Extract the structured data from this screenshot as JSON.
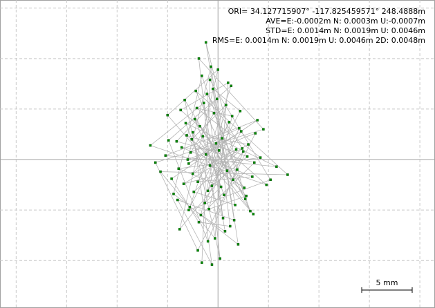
{
  "chart_data": {
    "type": "scatter",
    "annotations": [
      "ORI= 34.127715907° -117.825459571° 248.4888m",
      "AVE=E:-0.0002m N: 0.0003m U:-0.0007m",
      "STD=E: 0.0014m N: 0.0019m U: 0.0046m",
      "RMS=E: 0.0014m N: 0.0019m U: 0.0046m 2D: 0.0048m"
    ],
    "scale_bar": {
      "value": 5,
      "label": "5 mm"
    },
    "xlim": [
      -21.6,
      21.5
    ],
    "ylim": [
      -14.7,
      15.8
    ],
    "xticks": [
      -20,
      -15,
      -10,
      -5,
      0,
      5,
      10,
      15,
      20
    ],
    "yticks": [
      -10,
      -5,
      0,
      5,
      10,
      15
    ],
    "grid": true,
    "line_color": "#b4b4b4",
    "color": "#009000",
    "series": [
      {
        "x": [
          -1.2,
          0.4,
          -2.5,
          1.8,
          -0.6,
          2.9,
          -3.1,
          0.9,
          -1.8,
          1.5,
          -0.2,
          -2.9,
          2.3,
          -1.0,
          0.1,
          -3.6,
          3.4,
          -2.0,
          1.1,
          -0.8,
          2.6,
          -2.3,
          0.6,
          -1.5,
          3.0,
          -3.4,
          1.9,
          -0.4,
          -2.7,
          2.1,
          -1.3,
          0.3,
          -3.9,
          4.2,
          -2.1,
          1.4,
          -0.9,
          2.8,
          -2.6,
          0.8,
          -1.7,
          3.6,
          -4.1,
          -0.1,
          1.7,
          -2.4,
          2.4,
          -1.1,
          0.5,
          -3.2,
          5.8,
          -5.2,
          3.9,
          -4.6,
          -1.9,
          1.2,
          -0.5,
          2.2,
          -2.8,
          0.7,
          -1.4,
          -6.7,
          4.8,
          -3.7,
          1.0,
          -0.3,
          -5.7,
          6.9,
          -2.2,
          3.2,
          -1.6,
          -4.4,
          2.0,
          -0.7,
          -3.0,
          3.7,
          -2.0,
          -6.2,
          4.5,
          -1.9,
          0.2,
          -3.3,
          2.7,
          -1.2,
          1.6,
          -4.0,
          -0.6,
          -2.5,
          3.5,
          -5.0,
          0.0,
          -3.8,
          2.5,
          -1.0,
          -4.9,
          1.3,
          -2.9,
          5.2,
          -0.8,
          -1.6
        ],
        "values": [
          0.5,
          2.1,
          -1.4,
          1.0,
          -2.6,
          0.3,
          2.4,
          -1.1,
          3.3,
          -2.0,
          1.6,
          -0.4,
          2.8,
          -3.1,
          0.9,
          1.2,
          -1.7,
          -2.2,
          3.7,
          -0.6,
          -2.8,
          4.0,
          -3.5,
          2.3,
          1.5,
          -2.4,
          -1.0,
          4.6,
          0.7,
          3.1,
          -4.3,
          -2.7,
          -0.9,
          0.2,
          5.1,
          4.3,
          -4.9,
          -3.6,
          2.0,
          5.4,
          -5.5,
          -0.3,
          1.8,
          6.0,
          -4.5,
          -3.2,
          1.1,
          6.5,
          -5.8,
          3.6,
          -0.7,
          0.4,
          3.9,
          -1.9,
          -6.2,
          -6.6,
          7.0,
          4.8,
          -4.7,
          -7.1,
          5.6,
          1.4,
          -2.5,
          4.9,
          7.6,
          -7.8,
          -1.2,
          -1.5,
          6.8,
          -5.1,
          8.3,
          -3.4,
          -8.4,
          9.2,
          0.0,
          2.6,
          -9.0,
          -0.3,
          3.0,
          10.0,
          -9.8,
          5.9,
          -3.9,
          11.6,
          -6.0,
          -4.0,
          -10.4,
          2.7,
          -5.4,
          4.4,
          8.9,
          -6.9,
          0.8,
          -8.1,
          1.9,
          7.3,
          -5.0,
          -2.0,
          7.9,
          -10.2
        ]
      }
    ]
  }
}
